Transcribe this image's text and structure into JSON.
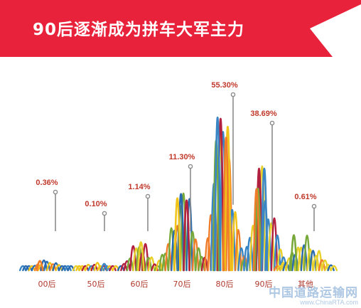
{
  "title": "90后逐渐成为拼车大军主力",
  "colors": {
    "banner": "#e8223a",
    "label": "#c0392b",
    "axis_label": "#b03a2e",
    "series": [
      "#2a6ab0",
      "#f0c419",
      "#b22040",
      "#78a93a",
      "#f07d2a",
      "#3a86c5",
      "#e8d02a"
    ]
  },
  "chart_data": {
    "type": "bar",
    "categories": [
      "00后",
      "50后",
      "60后",
      "70后",
      "80后",
      "90后",
      "其他"
    ],
    "values": [
      0.36,
      0.1,
      1.14,
      11.3,
      55.3,
      38.69,
      0.61
    ],
    "value_labels": [
      "0.36%",
      "0.10%",
      "1.14%",
      "11.30%",
      "55.30%",
      "38.69%",
      "0.61%"
    ],
    "unit": "%",
    "title": "90后逐渐成为拼车大军主力",
    "grid": false,
    "legend": "none"
  },
  "watermark": {
    "text_cn": "中国道路运输网",
    "text_en": "www.ChinaRTA.com"
  }
}
